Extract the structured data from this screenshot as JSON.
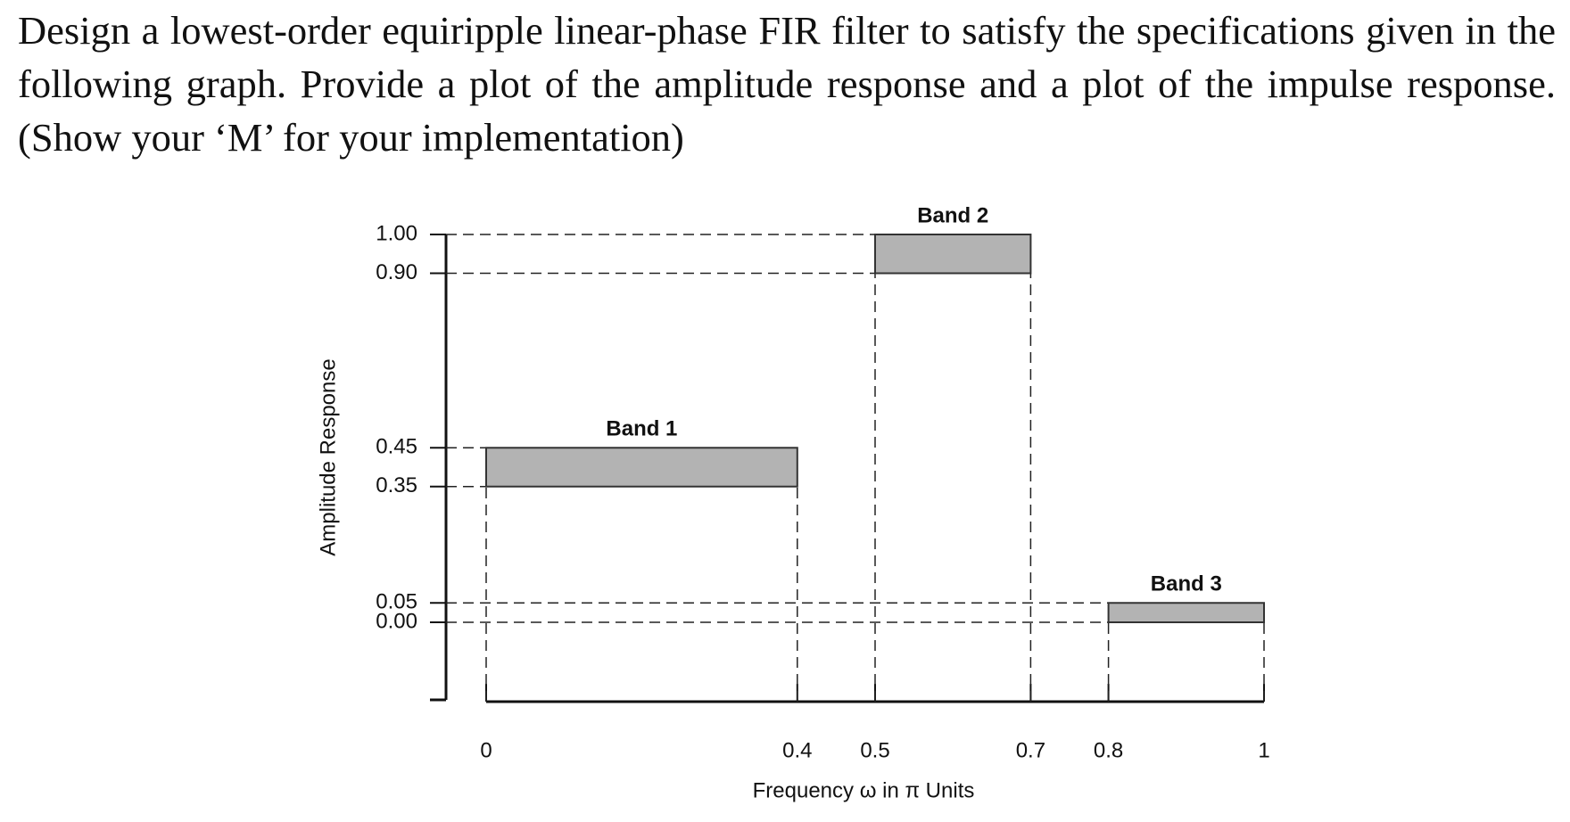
{
  "question": "Design a lowest-order equiripple linear-phase FIR filter to satisfy the specifications given in the following graph. Provide a plot of the amplitude response and a plot of the impulse response. (Show your ‘M’ for your implementation)",
  "chart_data": {
    "type": "band-spec",
    "x_label": "Frequency ω  in π  Units",
    "y_label": "Amplitude Response",
    "xlim": [
      0,
      1
    ],
    "ylim": [
      -0.2,
      1
    ],
    "xticks": [
      0,
      0.4,
      0.5,
      0.7,
      0.8,
      1
    ],
    "yticks": [
      {
        "value": 1,
        "label": "1.00"
      },
      {
        "value": 0.9,
        "label": "0.90"
      },
      {
        "value": 0.45,
        "label": "0.45"
      },
      {
        "value": 0.35,
        "label": "0.35"
      },
      {
        "value": 0.05,
        "label": "0.05"
      },
      {
        "value": 0,
        "label": "0.00"
      }
    ],
    "color": "#b3b3b3",
    "bands": [
      {
        "name": "Band 1",
        "x": [
          0,
          0.4
        ],
        "y": [
          0.35,
          0.45
        ]
      },
      {
        "name": "Band 2",
        "x": [
          0.5,
          0.7
        ],
        "y": [
          0.9,
          1
        ]
      },
      {
        "name": "Band 3",
        "x": [
          0.8,
          1
        ],
        "y": [
          0,
          0.05
        ]
      }
    ]
  }
}
